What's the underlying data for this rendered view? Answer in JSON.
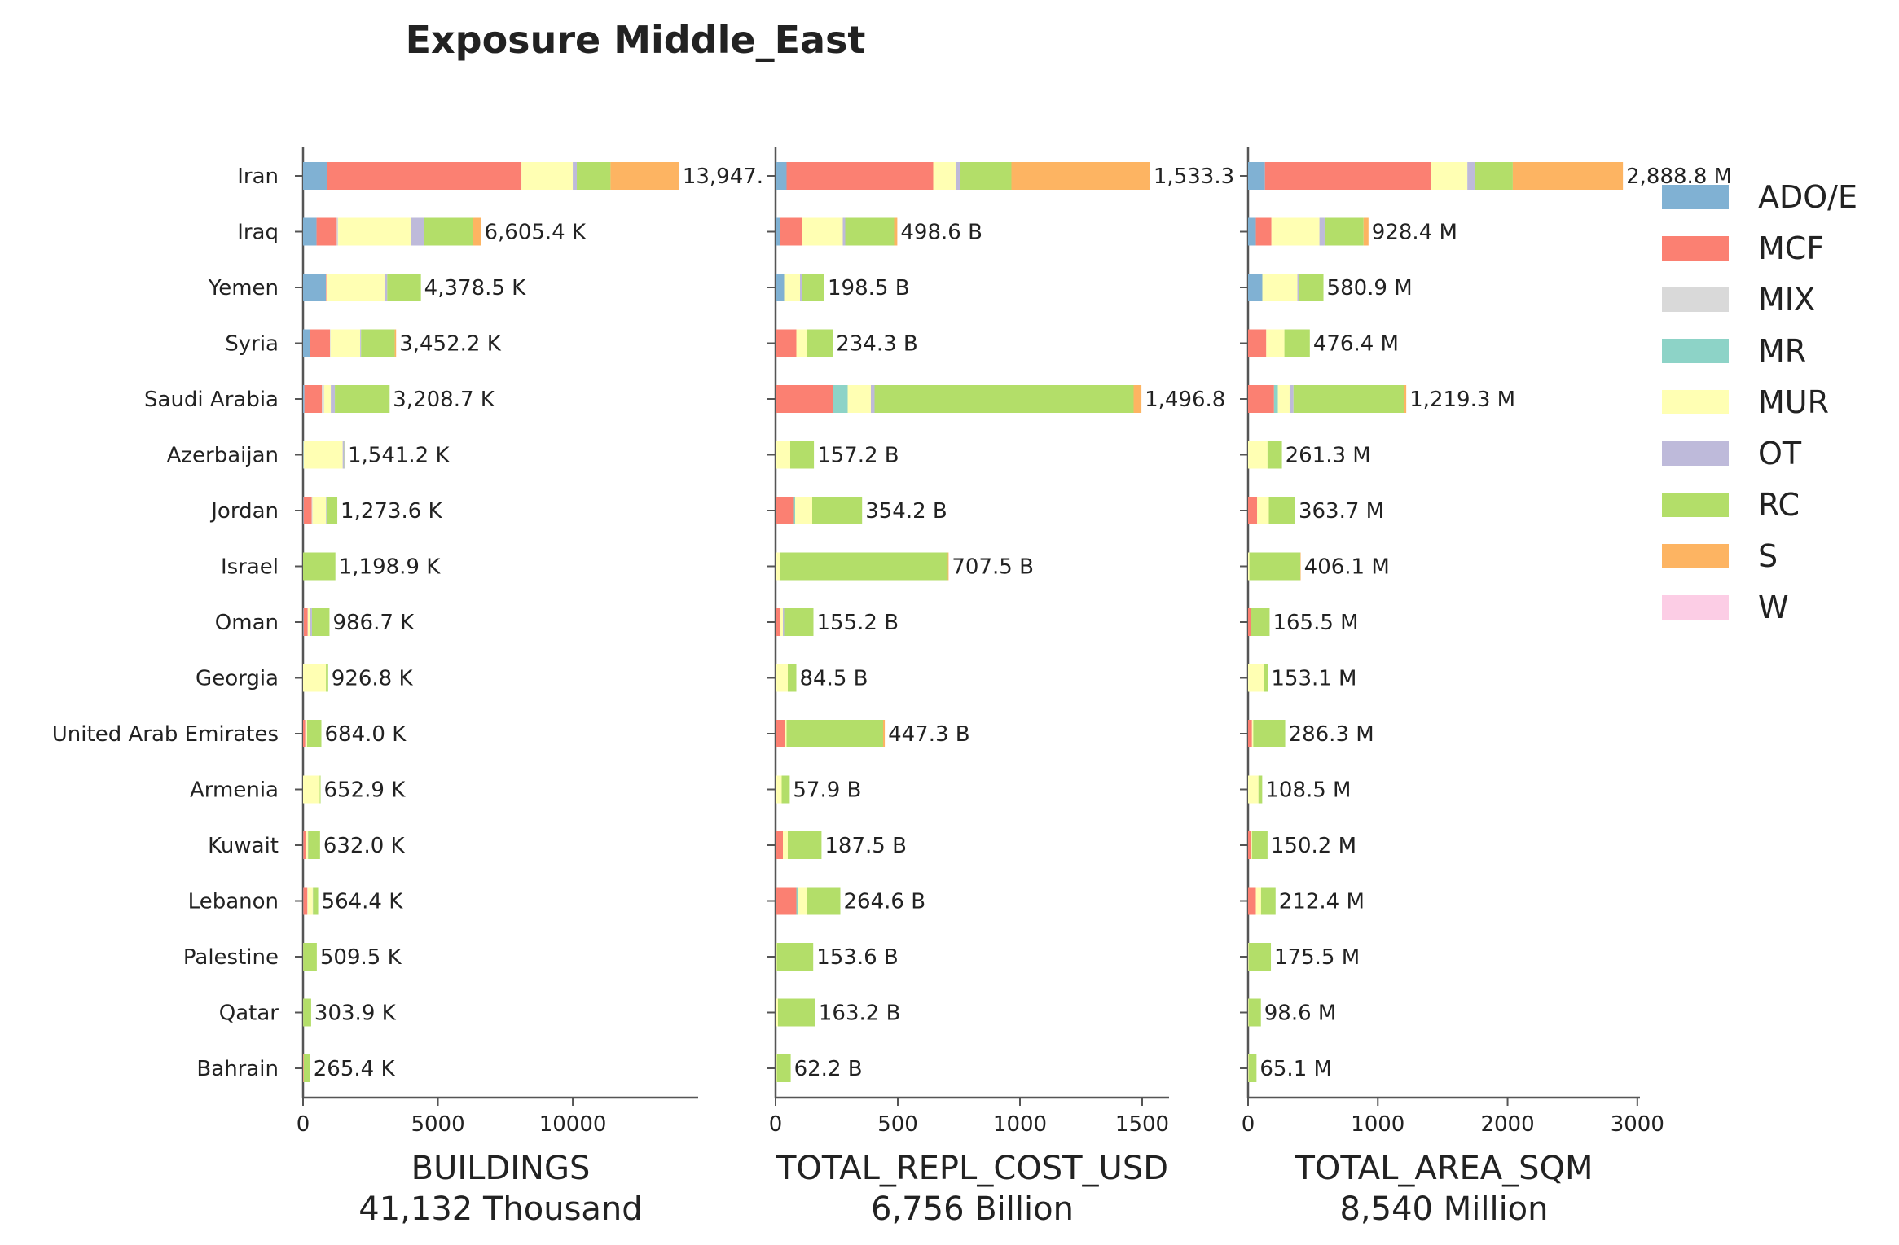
{
  "chart_data": {
    "type": "bar",
    "orientation": "horizontal",
    "stacked": true,
    "title": "Exposure Middle_East",
    "categories": [
      "Iran",
      "Iraq",
      "Yemen",
      "Syria",
      "Saudi Arabia",
      "Azerbaijan",
      "Jordan",
      "Israel",
      "Oman",
      "Georgia",
      "United Arab Emirates",
      "Armenia",
      "Kuwait",
      "Lebanon",
      "Palestine",
      "Qatar",
      "Bahrain"
    ],
    "legend": {
      "position": "right",
      "items": [
        {
          "name": "ADO/E",
          "color": "#80b1d3"
        },
        {
          "name": "MCF",
          "color": "#fb8072"
        },
        {
          "name": "MIX",
          "color": "#d9d9d9"
        },
        {
          "name": "MR",
          "color": "#8dd3c7"
        },
        {
          "name": "MUR",
          "color": "#ffffb3"
        },
        {
          "name": "OT",
          "color": "#bebada"
        },
        {
          "name": "RC",
          "color": "#b3de69"
        },
        {
          "name": "S",
          "color": "#fdb462"
        },
        {
          "name": "W",
          "color": "#fccde5"
        }
      ]
    },
    "panels": [
      {
        "xlabel": "BUILDINGS",
        "total_label": "41,132 Thousand",
        "xlim": [
          0,
          14650
        ],
        "xticks": [
          0,
          5000,
          10000
        ],
        "xtick_labels": [
          "0",
          "5000",
          "10000"
        ],
        "totals": [
          "13,947.",
          "6,605.4 K",
          "4,378.5 K",
          "3,452.2 K",
          "3,208.7 K",
          "1,541.2 K",
          "1,273.6 K",
          "1,198.9 K",
          "986.7 K",
          "926.8 K",
          "684.0 K",
          "652.9 K",
          "632.0 K",
          "564.4 K",
          "509.5 K",
          "303.9 K",
          "265.4 K"
        ],
        "values": [
          [
            900,
            7200,
            0,
            0,
            1900,
            150,
            1250,
            2550,
            0
          ],
          [
            500,
            750,
            50,
            0,
            2700,
            500,
            1800,
            300,
            0
          ],
          [
            850,
            20,
            0,
            0,
            2150,
            100,
            1250,
            0,
            0
          ],
          [
            250,
            750,
            20,
            0,
            1100,
            30,
            1250,
            50,
            0
          ],
          [
            50,
            650,
            80,
            0,
            250,
            150,
            2030,
            0,
            0
          ],
          [
            20,
            0,
            0,
            0,
            1450,
            60,
            10,
            0,
            0
          ],
          [
            20,
            300,
            30,
            0,
            500,
            20,
            400,
            0,
            0
          ],
          [
            0,
            0,
            0,
            0,
            0,
            0,
            1200,
            0,
            0
          ],
          [
            20,
            150,
            10,
            0,
            80,
            70,
            650,
            0,
            0
          ],
          [
            0,
            0,
            0,
            0,
            850,
            0,
            80,
            0,
            0
          ],
          [
            0,
            80,
            20,
            0,
            50,
            0,
            530,
            0,
            0
          ],
          [
            0,
            0,
            0,
            0,
            620,
            0,
            30,
            0,
            0
          ],
          [
            10,
            80,
            10,
            0,
            80,
            10,
            440,
            0,
            0
          ],
          [
            10,
            150,
            10,
            0,
            190,
            10,
            190,
            0,
            0
          ],
          [
            0,
            0,
            0,
            0,
            10,
            0,
            500,
            0,
            0
          ],
          [
            0,
            0,
            0,
            0,
            10,
            0,
            290,
            0,
            0
          ],
          [
            0,
            20,
            0,
            0,
            10,
            0,
            235,
            0,
            0
          ]
        ]
      },
      {
        "xlabel": "TOTAL_REPL_COST_USD",
        "total_label": "6,756 Billion",
        "xlim": [
          0,
          1610
        ],
        "xticks": [
          0,
          500,
          1000,
          1500
        ],
        "xtick_labels": [
          "0",
          "500",
          "1000",
          "1500"
        ],
        "totals": [
          "1,533.3",
          "498.6 B",
          "198.5 B",
          "234.3 B",
          "1,496.8",
          "157.2 B",
          "354.2 B",
          "707.5 B",
          "155.2 B",
          "84.5 B",
          "447.3 B",
          "57.9 B",
          "187.5 B",
          "264.6 B",
          "153.6 B",
          "163.2 B",
          "62.2 B"
        ],
        "values": [
          [
            45,
            600,
            0,
            0,
            95,
            15,
            210,
            568,
            0
          ],
          [
            20,
            90,
            0,
            0,
            165,
            10,
            200,
            13,
            0
          ],
          [
            35,
            0,
            0,
            0,
            65,
            10,
            90,
            0,
            0
          ],
          [
            0,
            85,
            0,
            0,
            45,
            0,
            104,
            0,
            0
          ],
          [
            0,
            235,
            0,
            60,
            95,
            15,
            1060,
            32,
            0
          ],
          [
            0,
            0,
            0,
            0,
            60,
            0,
            97,
            0,
            0
          ],
          [
            0,
            75,
            0,
            5,
            70,
            0,
            204,
            0,
            0
          ],
          [
            0,
            0,
            0,
            0,
            20,
            0,
            685,
            3,
            0
          ],
          [
            0,
            20,
            0,
            0,
            10,
            5,
            120,
            0,
            0
          ],
          [
            0,
            0,
            0,
            0,
            50,
            0,
            35,
            0,
            0
          ],
          [
            0,
            40,
            0,
            0,
            5,
            0,
            395,
            7,
            0
          ],
          [
            0,
            0,
            0,
            0,
            25,
            0,
            33,
            0,
            0
          ],
          [
            0,
            30,
            0,
            0,
            20,
            0,
            138,
            0,
            0
          ],
          [
            0,
            85,
            0,
            5,
            40,
            0,
            135,
            0,
            0
          ],
          [
            0,
            0,
            0,
            0,
            5,
            0,
            149,
            0,
            0
          ],
          [
            0,
            0,
            0,
            0,
            10,
            0,
            150,
            3,
            0
          ],
          [
            0,
            0,
            0,
            0,
            5,
            0,
            57,
            0,
            0
          ]
        ]
      },
      {
        "xlabel": "TOTAL_AREA_SQM",
        "total_label": "8,540 Million",
        "xlim": [
          0,
          3020
        ],
        "xticks": [
          0,
          1000,
          2000,
          3000
        ],
        "xtick_labels": [
          "0",
          "1000",
          "2000",
          "3000"
        ],
        "totals": [
          "2,888.8 M",
          "928.4 M",
          "580.9 M",
          "476.4 M",
          "1,219.3 M",
          "261.3 M",
          "363.7 M",
          "406.1 M",
          "165.5 M",
          "153.1 M",
          "286.3 M",
          "108.5 M",
          "150.2 M",
          "212.4 M",
          "175.5 M",
          "98.6 M",
          "65.1 M"
        ],
        "values": [
          [
            130,
            1280,
            0,
            0,
            280,
            60,
            290,
            849,
            0
          ],
          [
            60,
            120,
            0,
            0,
            370,
            40,
            300,
            38,
            0
          ],
          [
            110,
            0,
            0,
            0,
            270,
            10,
            191,
            0,
            0
          ],
          [
            0,
            140,
            0,
            0,
            140,
            0,
            196,
            0,
            0
          ],
          [
            0,
            200,
            0,
            30,
            90,
            30,
            850,
            19,
            0
          ],
          [
            0,
            0,
            0,
            0,
            150,
            0,
            111,
            0,
            0
          ],
          [
            0,
            70,
            0,
            0,
            90,
            0,
            204,
            0,
            0
          ],
          [
            0,
            0,
            0,
            0,
            10,
            0,
            393,
            3,
            0
          ],
          [
            0,
            20,
            0,
            0,
            5,
            0,
            141,
            0,
            0
          ],
          [
            0,
            0,
            0,
            0,
            120,
            0,
            33,
            0,
            0
          ],
          [
            0,
            30,
            0,
            0,
            10,
            0,
            246,
            0,
            0
          ],
          [
            0,
            0,
            0,
            0,
            80,
            0,
            29,
            0,
            0
          ],
          [
            0,
            20,
            0,
            0,
            10,
            0,
            120,
            0,
            0
          ],
          [
            0,
            60,
            0,
            0,
            40,
            0,
            112,
            0,
            0
          ],
          [
            0,
            0,
            0,
            0,
            5,
            0,
            171,
            0,
            0
          ],
          [
            0,
            0,
            0,
            0,
            5,
            0,
            94,
            0,
            0
          ],
          [
            0,
            0,
            0,
            0,
            5,
            0,
            60,
            0,
            0
          ]
        ]
      }
    ]
  }
}
